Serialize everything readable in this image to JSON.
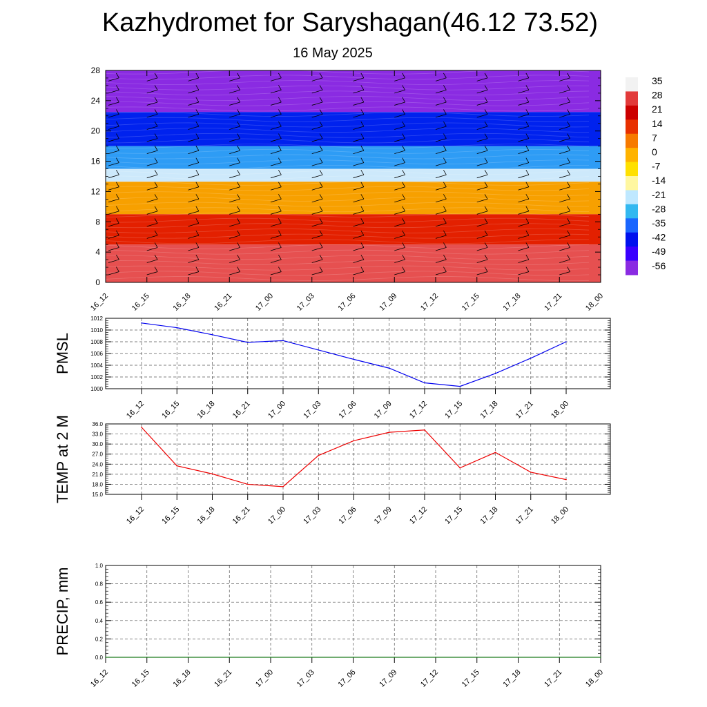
{
  "page": {
    "title": "Kazhydromet for Saryshagan(46.12 73.52)",
    "subtitle": "16 May 2025"
  },
  "chart_data": [
    {
      "type": "heatmap",
      "name": "vertical-cross-section",
      "title": "",
      "xlabel": "",
      "ylabel": "",
      "x": [
        "16_12",
        "16_15",
        "16_18",
        "16_21",
        "17_00",
        "17_03",
        "17_06",
        "17_09",
        "17_12",
        "17_15",
        "17_18",
        "17_21",
        "18_00"
      ],
      "yticks": [
        0,
        4,
        8,
        12,
        16,
        20,
        24,
        28
      ],
      "ylim": [
        0,
        28
      ],
      "colorbar": {
        "labels": [
          "35",
          "28",
          "21",
          "14",
          "7",
          "0",
          "-7",
          "-14",
          "-21",
          "-28",
          "-35",
          "-42",
          "-49",
          "-56"
        ],
        "stops": [
          "#f2f2f2",
          "#e23a3a",
          "#cc0000",
          "#e83000",
          "#f77a00",
          "#ffb300",
          "#ffe000",
          "#fff7a0",
          "#bfe8ff",
          "#33b8f0",
          "#1a66ff",
          "#0011ee",
          "#3a00ff",
          "#8a2be2"
        ]
      },
      "layers": [
        {
          "from": 28,
          "to": 22.5,
          "color": "#8a2be2"
        },
        {
          "from": 22.5,
          "to": 18,
          "color": "#0022ee"
        },
        {
          "from": 18,
          "to": 15,
          "color": "#2e9cf5"
        },
        {
          "from": 15,
          "to": 13.3,
          "color": "#cde9fb"
        },
        {
          "from": 13.3,
          "to": 9,
          "color": "#f7a000"
        },
        {
          "from": 9,
          "to": 5,
          "color": "#e32000"
        },
        {
          "from": 5,
          "to": 0,
          "color": "#e65050"
        }
      ],
      "wind_barbs": true
    },
    {
      "type": "line",
      "name": "pmsl",
      "ylabel": "PMSL",
      "x": [
        "16_12",
        "16_15",
        "16_18",
        "16_21",
        "17_00",
        "17_03",
        "17_06",
        "17_09",
        "17_12",
        "17_15",
        "17_18",
        "17_21",
        "18_00"
      ],
      "series": [
        {
          "values": [
            1011.2,
            1010.4,
            1009.2,
            1007.9,
            1008.2,
            1006.6,
            1005.0,
            1003.5,
            1001.0,
            1000.4,
            1002.6,
            1005.2,
            1008.0
          ],
          "color": "#0000ee"
        }
      ],
      "ylim": [
        1000,
        1012
      ],
      "yticks": [
        1000,
        1002,
        1004,
        1006,
        1008,
        1010,
        1012
      ],
      "grid": true
    },
    {
      "type": "line",
      "name": "temp-2m",
      "ylabel": "TEMP at 2 M",
      "x": [
        "16_12",
        "16_15",
        "16_18",
        "16_21",
        "17_00",
        "17_03",
        "17_06",
        "17_09",
        "17_12",
        "17_15",
        "17_18",
        "17_21",
        "18_00"
      ],
      "series": [
        {
          "values": [
            35.0,
            23.5,
            21.1,
            18.0,
            17.3,
            26.6,
            31.0,
            33.5,
            34.2,
            22.9,
            27.5,
            21.6,
            19.4
          ],
          "color": "#ee0000"
        }
      ],
      "ylim": [
        15,
        36
      ],
      "yticks": [
        "15.0",
        "18.0",
        "21.0",
        "24.0",
        "27.0",
        "30.0",
        "33.0",
        "36.0"
      ],
      "grid": true
    },
    {
      "type": "line",
      "name": "precip",
      "ylabel": "PRECIP, mm",
      "x": [
        "16_12",
        "16_15",
        "16_18",
        "16_21",
        "17_00",
        "17_03",
        "17_06",
        "17_09",
        "17_12",
        "17_15",
        "17_18",
        "17_21",
        "18_00"
      ],
      "series": [
        {
          "values": [
            0,
            0,
            0,
            0,
            0,
            0,
            0,
            0,
            0,
            0,
            0,
            0,
            0
          ],
          "color": "#1a7a1a"
        }
      ],
      "ylim": [
        0,
        1
      ],
      "yticks": [
        "0.0",
        "0.2",
        "0.4",
        "0.6",
        "0.8",
        "1.0"
      ],
      "grid": true
    }
  ]
}
